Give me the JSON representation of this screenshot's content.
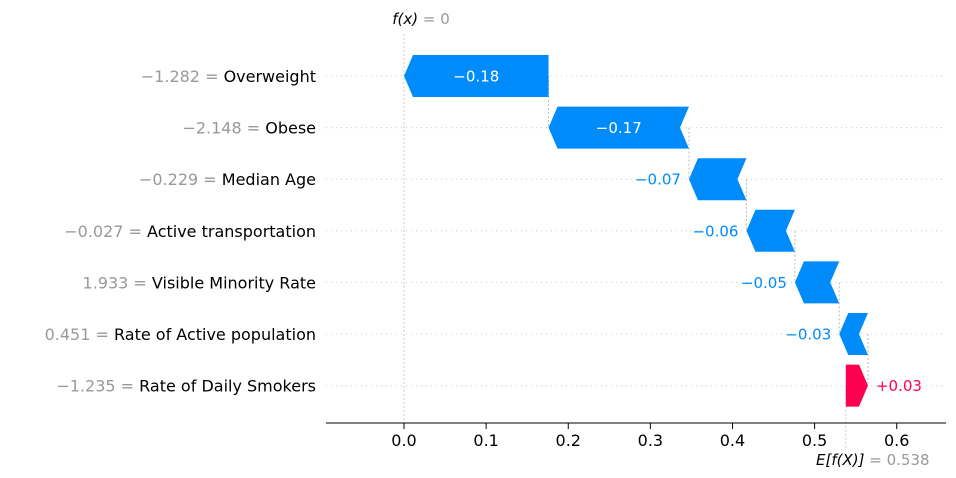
{
  "chart_data": {
    "type": "waterfall",
    "title": "",
    "fx_label": "f(x)",
    "fx_value": "0",
    "fx_numeric": 0,
    "ex_label": "E[f(X)]",
    "ex_value": "0.538",
    "ex_numeric": 0.538,
    "xlim": [
      -0.095,
      0.66
    ],
    "xticks": [
      0.0,
      0.1,
      0.2,
      0.3,
      0.4,
      0.5,
      0.6
    ],
    "xtick_labels": [
      "0.0",
      "0.1",
      "0.2",
      "0.3",
      "0.4",
      "0.5",
      "0.6"
    ],
    "colors": {
      "negative": "#008bfb",
      "positive": "#ff0051",
      "feature_value": "#999999",
      "label_text": "#000000"
    },
    "features": [
      {
        "value": "−1.282",
        "name": "Overweight",
        "shap": -0.18,
        "label": "−0.18",
        "start": 0.176,
        "end": 0.0
      },
      {
        "value": "−2.148",
        "name": "Obese",
        "shap": -0.17,
        "label": "−0.17",
        "start": 0.347,
        "end": 0.176
      },
      {
        "value": "−0.229",
        "name": "Median Age",
        "shap": -0.07,
        "label": "−0.07",
        "start": 0.417,
        "end": 0.347
      },
      {
        "value": "−0.027",
        "name": "Active transportation",
        "shap": -0.06,
        "label": "−0.06",
        "start": 0.476,
        "end": 0.417
      },
      {
        "value": "1.933",
        "name": "Visible Minority Rate",
        "shap": -0.05,
        "label": "−0.05",
        "start": 0.53,
        "end": 0.476
      },
      {
        "value": "0.451",
        "name": "Rate of Active population",
        "shap": -0.03,
        "label": "−0.03",
        "start": 0.565,
        "end": 0.53
      },
      {
        "value": "−1.235",
        "name": "Rate of Daily Smokers",
        "shap": 0.03,
        "label": "+0.03",
        "start": 0.538,
        "end": 0.565
      }
    ]
  }
}
